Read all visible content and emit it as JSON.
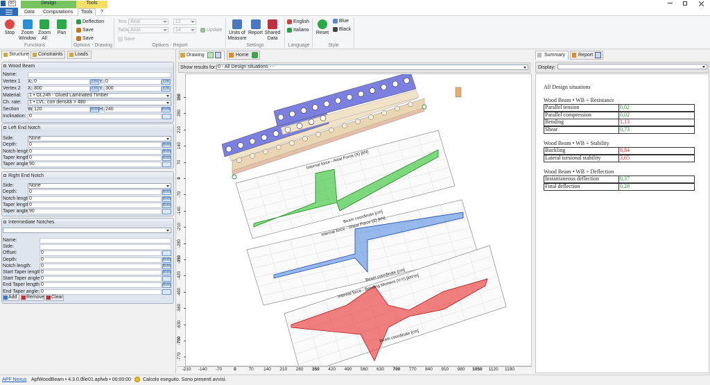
{
  "window": {
    "quick_access": "00",
    "context_tabs": [
      "Design",
      "Tools"
    ]
  },
  "ribbon": {
    "tabs": [
      "Data",
      "Computations",
      "Tools",
      "?"
    ],
    "groups": [
      {
        "label": "Functions",
        "items": [
          "Stop",
          "Zoom Window",
          "Zoom All",
          "Pan"
        ]
      },
      {
        "label": "Options - Drawing",
        "items": [
          "Deflection",
          "Save",
          "Save"
        ]
      },
      {
        "label": "Options - Report",
        "items": [
          "Text",
          "Arial",
          "12",
          "Table",
          "Arial",
          "14",
          "Save",
          "Update"
        ]
      },
      {
        "label": "Settings",
        "items": [
          "Units of Measure",
          "Report",
          "Shared Data"
        ]
      },
      {
        "label": "Language",
        "items": [
          "English",
          "Italiano"
        ]
      },
      {
        "label": "Style",
        "items": [
          "Reset",
          "Blue",
          "Black"
        ]
      }
    ]
  },
  "left_panel": {
    "tabs": [
      "Structure",
      "Constraints",
      "Loads"
    ],
    "sections": [
      {
        "title": "Wood Beam",
        "fields": [
          {
            "label": "Name:"
          },
          {
            "label": "Vertex 1",
            "pair": [
              {
                "axis": "X:",
                "value": "0",
                "unit": "cm"
              },
              {
                "axis": "Y:",
                "value": "0",
                "unit": "cm"
              }
            ]
          },
          {
            "label": "Vertex 2",
            "pair": [
              {
                "axis": "X:",
                "value": "800",
                "unit": "cm"
              },
              {
                "axis": "Y:",
                "value": "300",
                "unit": "cm"
              }
            ]
          },
          {
            "label": "Material:",
            "select": "1 • GL24h - Glued Laminated Timber"
          },
          {
            "label": "Ch. rate:",
            "select": "1 • LVL, con densità > 480"
          },
          {
            "label": "Section",
            "pair": [
              {
                "axis": "Wi",
                "value": "120",
                "unit": "mm"
              },
              {
                "axis": "H:",
                "value": "240",
                "unit": "mm"
              }
            ]
          },
          {
            "label": "Inclination:",
            "value": "0"
          }
        ]
      },
      {
        "title": "Left End Notch",
        "fields": [
          {
            "label": "Side:",
            "select": "None"
          },
          {
            "label": "Depth:",
            "value": "0",
            "unit": "mm"
          },
          {
            "label": "Notch length:",
            "value": "0",
            "unit": "mm"
          },
          {
            "label": "Taper length:",
            "value": "0",
            "unit": "mm"
          },
          {
            "label": "Taper angle:",
            "value": "90"
          }
        ]
      },
      {
        "title": "Right End Notch",
        "fields": [
          {
            "label": "Side:",
            "select": "None"
          },
          {
            "label": "Depth:",
            "value": "0",
            "unit": "mm"
          },
          {
            "label": "Notch length:",
            "value": "0",
            "unit": "mm"
          },
          {
            "label": "Taper length:",
            "value": "0",
            "unit": "mm"
          },
          {
            "label": "Taper angle:",
            "value": "90"
          }
        ]
      },
      {
        "title": "Intermediate Notches",
        "fields": [
          {
            "label": "Name:"
          },
          {
            "label": "Side:"
          },
          {
            "label": "Offset:",
            "value": "0"
          },
          {
            "label": "Depth:",
            "value": "0",
            "unit": "mm"
          },
          {
            "label": "Notch length:",
            "value": "0",
            "unit": "mm"
          },
          {
            "label": "Start Taper length:",
            "value": "0",
            "unit": "mm"
          },
          {
            "label": "Start Taper angle:",
            "value": "0"
          },
          {
            "label": "End Taper length:",
            "value": "0",
            "unit": "mm"
          },
          {
            "label": "End Taper angle:",
            "value": "0"
          }
        ],
        "buttons": [
          "Add",
          "Remove",
          "Clear"
        ]
      }
    ]
  },
  "center_panel": {
    "tabs": [
      "Drawing",
      "Home"
    ],
    "show_results_label": "Show results for:",
    "show_results_value": "0 - All Design situations - -",
    "ruler_y": [
      350,
      280,
      210,
      140,
      70,
      0,
      -70,
      -140,
      -210,
      -280,
      -350,
      -420,
      -490,
      -560,
      -630,
      -700,
      -770
    ],
    "ruler_x": [
      -210,
      -140,
      -70,
      0,
      70,
      140,
      210,
      280,
      350,
      420,
      490,
      560,
      630,
      700,
      770,
      840,
      910,
      980,
      1050,
      1120,
      1190
    ],
    "diagram_labels": [
      "Internal force - Axial Force (X) [kN]",
      "Beam coordinate [cm]",
      "Internal force - Shear Force (Z) [kN]",
      "Beam coordinate [cm]",
      "Internal force - Bending Moment (Y-Y) [kN*m]",
      "Beam coordinate [cm]"
    ]
  },
  "right_panel": {
    "tabs": [
      "Summary",
      "Report"
    ],
    "display_label": "Display:",
    "heading": "All Design situations",
    "groups": [
      {
        "title": "Wood Beam • WB ÷ Resistance",
        "rows": [
          {
            "name": "Parallel tension",
            "value": "0,02",
            "color": "#2e8b2e"
          },
          {
            "name": "Parallel compression",
            "value": "0,02",
            "color": "#2e8b2e"
          },
          {
            "name": "Bending",
            "value": "1,13",
            "color": "#d42020"
          },
          {
            "name": "Shear",
            "value": "0,73",
            "color": "#2e8b2e"
          }
        ]
      },
      {
        "title": "Wood Beam • WB ÷ Stability",
        "rows": [
          {
            "name": "Buckling",
            "value": "8,84",
            "color": "#d42020"
          },
          {
            "name": "Lateral torsional stability",
            "value": "3,65",
            "color": "#d42020"
          }
        ]
      },
      {
        "title": "Wood Beam • WB ÷ Deflection",
        "rows": [
          {
            "name": "Instantaneous deflection",
            "value": "0,37",
            "color": "#2e8b2e"
          },
          {
            "name": "Final deflection",
            "value": "0,28",
            "color": "#2e8b2e"
          }
        ]
      }
    ]
  },
  "status_bar": {
    "link": "APF Nexus",
    "app": "ApfWoodBeam • 4.3.0.0",
    "file": "file01.apfwb • 00:00:00",
    "message": "Calcolo eseguito. Sono presenti avvisi."
  }
}
